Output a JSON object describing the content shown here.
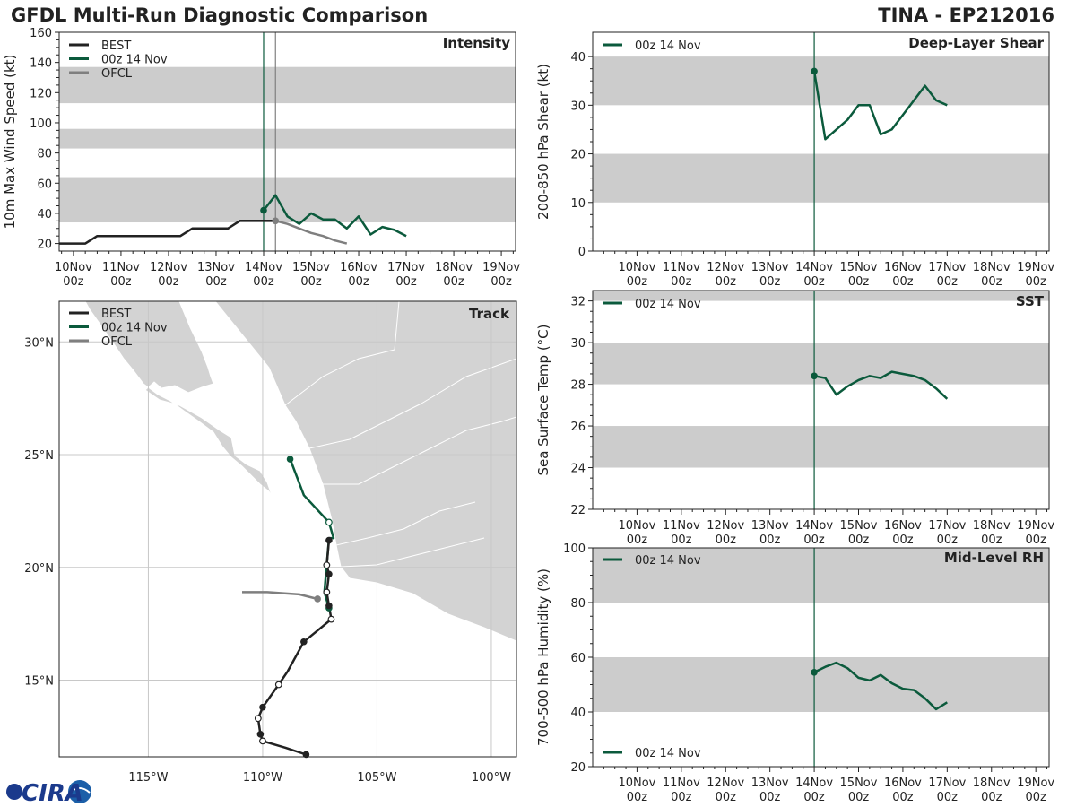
{
  "header": {
    "title": "GFDL Multi-Run Diagnostic Comparison",
    "storm": "TINA - EP212016"
  },
  "logo": {
    "text": "CIRA"
  },
  "colors": {
    "best": "#222222",
    "run": "#0b5a3c",
    "ofcl": "#7f7f7f",
    "band": "#cccccc",
    "land": "#d3d3d3",
    "grid": "#cccccc"
  },
  "time_axis": {
    "ticks": [
      "10Nov",
      "11Nov",
      "12Nov",
      "13Nov",
      "14Nov",
      "15Nov",
      "16Nov",
      "17Nov",
      "18Nov",
      "19Nov"
    ],
    "subticks": [
      "00z",
      "00z",
      "00z",
      "00z",
      "00z",
      "00z",
      "00z",
      "00z",
      "00z",
      "00z"
    ]
  },
  "chart_data": [
    {
      "type": "line",
      "id": "intensity",
      "title": "Intensity",
      "ylabel": "10m Max Wind Speed (kt)",
      "xlim": [
        9.7,
        19.3
      ],
      "ylim": [
        15,
        160
      ],
      "yticks": [
        20,
        40,
        60,
        80,
        100,
        120,
        140,
        160
      ],
      "bands": [
        [
          34,
          64
        ],
        [
          83,
          96
        ],
        [
          113,
          137
        ]
      ],
      "vlines": [
        {
          "x": 14.0,
          "series": "run"
        },
        {
          "x": 14.25,
          "series": "ofcl"
        }
      ],
      "legend": [
        "BEST",
        "00z 14 Nov",
        "OFCL"
      ],
      "series": [
        {
          "name": "BEST",
          "color_key": "best",
          "x": [
            9.7,
            10.25,
            10.5,
            10.75,
            11.0,
            11.25,
            11.5,
            11.75,
            12.0,
            12.25,
            12.5,
            12.75,
            13.0,
            13.25,
            13.5,
            13.75,
            14.0,
            14.25
          ],
          "y": [
            20,
            20,
            25,
            25,
            25,
            25,
            25,
            25,
            25,
            25,
            30,
            30,
            30,
            30,
            35,
            35,
            35,
            35
          ]
        },
        {
          "name": "00z 14 Nov",
          "color_key": "run",
          "x": [
            14.0,
            14.25,
            14.5,
            14.75,
            15.0,
            15.25,
            15.5,
            15.75,
            16.0,
            16.25,
            16.5,
            16.75,
            17.0
          ],
          "y": [
            42,
            52,
            38,
            33,
            40,
            36,
            36,
            30,
            38,
            26,
            31,
            29,
            25
          ],
          "marker_index": 0
        },
        {
          "name": "OFCL",
          "color_key": "ofcl",
          "x": [
            14.25,
            14.5,
            14.75,
            15.0,
            15.25,
            15.5,
            15.75
          ],
          "y": [
            35,
            33,
            30,
            27,
            25,
            22,
            20
          ],
          "marker_index": 0
        }
      ]
    },
    {
      "type": "line",
      "id": "shear",
      "title": "Deep-Layer Shear",
      "ylabel": "200-850 hPa Shear (kt)",
      "xlim": [
        9.0,
        19.3
      ],
      "ylim": [
        0,
        45
      ],
      "yticks": [
        0,
        10,
        20,
        30,
        40
      ],
      "bands": [
        [
          10,
          20
        ],
        [
          30,
          40
        ]
      ],
      "vlines": [
        {
          "x": 14.0,
          "series": "run"
        }
      ],
      "legend": [
        "00z 14 Nov"
      ],
      "series": [
        {
          "name": "00z 14 Nov",
          "color_key": "run",
          "x": [
            14.0,
            14.25,
            14.5,
            14.75,
            15.0,
            15.25,
            15.5,
            15.75,
            16.0,
            16.25,
            16.5,
            16.75,
            17.0
          ],
          "y": [
            37,
            23,
            25,
            27,
            30,
            30,
            24,
            25,
            28,
            31,
            34,
            31,
            30
          ],
          "marker_index": 0
        }
      ]
    },
    {
      "type": "line",
      "id": "sst",
      "title": "SST",
      "ylabel": "Sea Surface Temp (°C)",
      "xlim": [
        9.0,
        19.3
      ],
      "ylim": [
        22,
        32.5
      ],
      "yticks": [
        22,
        24,
        26,
        28,
        30,
        32
      ],
      "bands": [
        [
          24,
          26
        ],
        [
          28,
          30
        ],
        [
          32,
          32.5
        ]
      ],
      "vlines": [
        {
          "x": 14.0,
          "series": "run"
        }
      ],
      "legend": [
        "00z 14 Nov"
      ],
      "series": [
        {
          "name": "00z 14 Nov",
          "color_key": "run",
          "x": [
            14.0,
            14.25,
            14.5,
            14.75,
            15.0,
            15.25,
            15.5,
            15.75,
            16.0,
            16.25,
            16.5,
            16.75,
            17.0
          ],
          "y": [
            28.4,
            28.3,
            27.5,
            27.9,
            28.2,
            28.4,
            28.3,
            28.6,
            28.5,
            28.4,
            28.2,
            27.8,
            27.3
          ],
          "marker_index": 0
        }
      ]
    },
    {
      "type": "line",
      "id": "rh",
      "title": "Mid-Level RH",
      "ylabel": "700-500 hPa Humidity (%)",
      "xlim": [
        9.0,
        19.3
      ],
      "ylim": [
        20,
        100
      ],
      "yticks": [
        20,
        40,
        60,
        80,
        100
      ],
      "bands": [
        [
          40,
          60
        ],
        [
          80,
          100
        ]
      ],
      "vlines": [
        {
          "x": 14.0,
          "series": "run"
        }
      ],
      "legend": [
        "00z 14 Nov",
        "00z 14 Nov"
      ],
      "series": [
        {
          "name": "00z 14 Nov",
          "color_key": "run",
          "x": [
            14.0,
            14.25,
            14.5,
            14.75,
            15.0,
            15.25,
            15.5,
            15.75,
            16.0,
            16.25,
            16.5,
            16.75,
            17.0
          ],
          "y": [
            54.5,
            56.5,
            58,
            56,
            52.5,
            51.5,
            53.5,
            50.5,
            48.5,
            48,
            45,
            41,
            43.5
          ],
          "marker_index": 0
        }
      ]
    },
    {
      "type": "line",
      "id": "track",
      "title": "Track",
      "xlabel": "",
      "ylabel": "",
      "lon_range": [
        -118.9,
        -98.9
      ],
      "lat_range": [
        11.6,
        31.8
      ],
      "lon_ticks": [
        -115,
        -110,
        -105,
        -100
      ],
      "lon_tick_labels": [
        "115°W",
        "110°W",
        "105°W",
        "100°W"
      ],
      "lat_ticks": [
        15,
        20,
        25,
        30
      ],
      "lat_tick_labels": [
        "15°N",
        "20°N",
        "25°N",
        "30°N"
      ],
      "legend": [
        "BEST",
        "00z 14 Nov",
        "OFCL"
      ],
      "series": [
        {
          "name": "BEST",
          "color_key": "best",
          "points": [
            [
              -108.1,
              11.7
            ],
            [
              -109.0,
              12.0
            ],
            [
              -110.0,
              12.3
            ],
            [
              -110.1,
              12.6
            ],
            [
              -110.2,
              13.3
            ],
            [
              -110.0,
              13.8
            ],
            [
              -109.3,
              14.8
            ],
            [
              -108.9,
              15.4
            ],
            [
              -108.2,
              16.7
            ],
            [
              -107.6,
              17.2
            ],
            [
              -107.0,
              17.7
            ],
            [
              -107.1,
              18.3
            ],
            [
              -107.2,
              18.9
            ],
            [
              -107.1,
              19.7
            ],
            [
              -107.2,
              20.1
            ],
            [
              -107.1,
              21.2
            ]
          ],
          "filled_markers": [
            0,
            3,
            5,
            8,
            11,
            13,
            15
          ],
          "open_markers": [
            2,
            4,
            6,
            10,
            12,
            14
          ]
        },
        {
          "name": "00z 14 Nov",
          "color_key": "run",
          "points": [
            [
              -107.1,
              18.2
            ],
            [
              -107.3,
              18.9
            ],
            [
              -107.2,
              20.1
            ],
            [
              -107.1,
              21.3
            ],
            [
              -106.9,
              21.3
            ],
            [
              -107.1,
              22.0
            ],
            [
              -108.2,
              23.2
            ],
            [
              -108.8,
              24.8
            ]
          ],
          "filled_markers": [
            0,
            7
          ],
          "open_markers": [
            5
          ]
        },
        {
          "name": "OFCL",
          "color_key": "ofcl",
          "points": [
            [
              -107.6,
              18.6
            ],
            [
              -108.4,
              18.8
            ],
            [
              -109.8,
              18.9
            ],
            [
              -110.9,
              18.9
            ]
          ],
          "filled_markers": [
            0
          ],
          "open_markers": []
        }
      ]
    }
  ]
}
